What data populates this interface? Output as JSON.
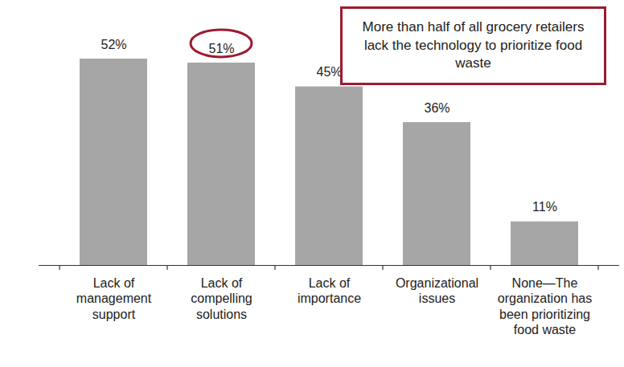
{
  "chart_data": {
    "type": "bar",
    "categories": [
      "Lack of management support",
      "Lack of compelling solutions",
      "Lack of importance",
      "Organizational issues",
      "None—The organization has been prioritizing food waste"
    ],
    "values": [
      52,
      51,
      45,
      36,
      11
    ],
    "value_labels": [
      "52%",
      "51%",
      "45%",
      "36%",
      "11%"
    ],
    "color": "#a6a6a6",
    "ylim": [
      0,
      52
    ],
    "data_labels": true,
    "tick_labels": "x",
    "grid": false,
    "annotations": [
      {
        "text": "More than half of all grocery retailers lack the technology to prioritize food waste",
        "category": "Lack of compelling solutions"
      }
    ]
  }
}
